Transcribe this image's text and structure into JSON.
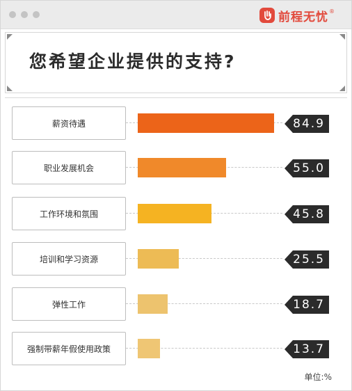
{
  "logo": {
    "text": "前程无忧",
    "mark": "®"
  },
  "title": "您希望企业提供的支持?",
  "unit": "单位:%",
  "chart_data": {
    "type": "bar",
    "orientation": "horizontal",
    "title": "您希望企业提供的支持?",
    "xlim": [
      0,
      100
    ],
    "categories": [
      "薪资待遇",
      "职业发展机会",
      "工作环境和氛围",
      "培训和学习资源",
      "弹性工作",
      "强制带薪年假使用政策"
    ],
    "values": [
      84.9,
      55.0,
      45.8,
      25.5,
      18.7,
      13.7
    ],
    "value_labels": [
      "84.9",
      "55.0",
      "45.8",
      "25.5",
      "18.7",
      "13.7"
    ],
    "colors": [
      "#ec6419",
      "#f0892a",
      "#f5b322",
      "#edbb55",
      "#edc36e",
      "#efc674"
    ]
  }
}
